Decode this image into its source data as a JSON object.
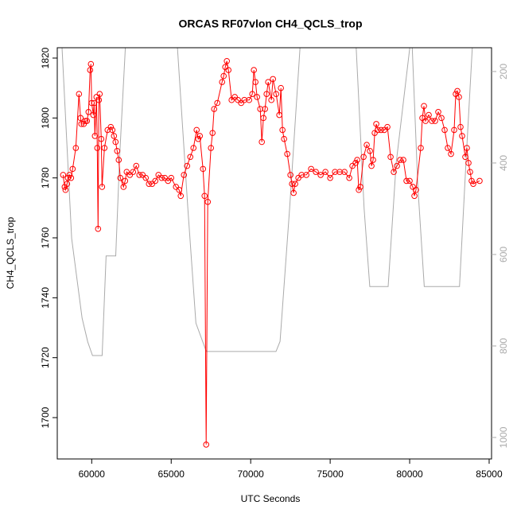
{
  "chart_data": {
    "type": "line",
    "title": "ORCAS RF07vlon CH4_QCLS_trop",
    "xlabel": "UTC Seconds",
    "ylabel": "CH4_QCLS_trop",
    "xlim": [
      57833,
      85151
    ],
    "ylim": [
      1686.2,
      1823.45
    ],
    "y2lim": [
      1047,
      148
    ],
    "xticks": [
      60000,
      65000,
      70000,
      75000,
      80000,
      85000
    ],
    "yticks": [
      1700,
      1720,
      1740,
      1760,
      1780,
      1800,
      1820
    ],
    "y2ticks": [
      200,
      400,
      600,
      800,
      1000
    ],
    "series": [
      {
        "color": "#aaaaaa",
        "axis": "y2",
        "x": [
          58135,
          58740,
          59395,
          59748,
          60050,
          60655,
          60907,
          61512,
          61764,
          62117,
          null,
          65393,
          66048,
          66552,
          67208,
          71593,
          71845,
          72450,
          73105,
          null,
          76633,
          77137,
          77490,
          78649,
          79153,
          80010,
          null,
          80161,
          80514,
          80917,
          83135,
          83538,
          83942
        ],
        "values": [
          148,
          565,
          739,
          791,
          821,
          821,
          603,
          603,
          380,
          148,
          null,
          148,
          500,
          750,
          812,
          812,
          790,
          500,
          148,
          null,
          148,
          500,
          670,
          670,
          400,
          148,
          null,
          148,
          450,
          670,
          670,
          400,
          148
        ]
      },
      {
        "color": "#ff0000",
        "markers": true,
        "x": [
          58200,
          58300,
          58350,
          58450,
          58500,
          58600,
          58700,
          58800,
          59000,
          59200,
          59300,
          59350,
          59500,
          59600,
          59700,
          59800,
          59900,
          59950,
          60000,
          60100,
          60150,
          60200,
          60300,
          60350,
          60400,
          60450,
          60500,
          60600,
          60650,
          60800,
          61000,
          61200,
          61300,
          61400,
          61500,
          61600,
          61700,
          61800,
          62000,
          62100,
          62200,
          62400,
          62600,
          62800,
          63000,
          63200,
          63400,
          63600,
          63800,
          64000,
          64200,
          64400,
          64600,
          64800,
          65000,
          65300,
          65500,
          65600,
          65800,
          66000,
          66200,
          66400,
          66600,
          66700,
          66800,
          67000,
          67100,
          67200,
          67300,
          67500,
          67600,
          67700,
          67900,
          68200,
          68300,
          68400,
          68500,
          68600,
          68800,
          69000,
          69200,
          69400,
          69600,
          69900,
          70100,
          70200,
          70300,
          70400,
          70600,
          70700,
          70800,
          70900,
          71000,
          71100,
          71300,
          71400,
          71600,
          71800,
          71900,
          72000,
          72100,
          72300,
          72500,
          72600,
          72700,
          72800,
          73000,
          73200,
          73500,
          73800,
          74100,
          74400,
          74700,
          75000,
          75300,
          75600,
          75900,
          76200,
          76400,
          76600,
          76700,
          76800,
          76900,
          77100,
          77300,
          77500,
          77600,
          77700,
          77800,
          77900,
          78000,
          78200,
          78400,
          78600,
          78800,
          79000,
          79200,
          79400,
          79600,
          79800,
          80000,
          80200,
          80300,
          80400,
          80700,
          80800,
          80900,
          81000,
          81200,
          81400,
          81600,
          81800,
          82000,
          82200,
          82400,
          82600,
          82800,
          82900,
          83000,
          83100,
          83200,
          83300,
          83500,
          83600,
          83700,
          83800,
          83900,
          84000,
          84400
        ],
        "values": [
          1781,
          1777,
          1776,
          1778,
          1780,
          1781,
          1780,
          1783,
          1790,
          1808,
          1800,
          1798,
          1798,
          1799,
          1799,
          1802,
          1816,
          1818,
          1805,
          1801,
          1805,
          1794,
          1807,
          1790,
          1763,
          1806,
          1808,
          1793,
          1777,
          1790,
          1796,
          1797,
          1796,
          1794,
          1792,
          1789,
          1786,
          1780,
          1777,
          1779,
          1782,
          1781,
          1782,
          1784,
          1781,
          1781,
          1780,
          1778,
          1778,
          1779,
          1781,
          1780,
          1780,
          1779,
          1780,
          1777,
          1776,
          1774,
          1781,
          1784,
          1787,
          1790,
          1796,
          1793,
          1794,
          1783,
          1774,
          1691,
          1772,
          1790,
          1795,
          1803,
          1805,
          1812,
          1814,
          1817,
          1819,
          1816,
          1806,
          1807,
          1806,
          1805,
          1806,
          1806,
          1808,
          1816,
          1812,
          1807,
          1803,
          1792,
          1800,
          1803,
          1808,
          1812,
          1806,
          1813,
          1808,
          1801,
          1810,
          1796,
          1793,
          1788,
          1781,
          1778,
          1775,
          1778,
          1780,
          1781,
          1781,
          1783,
          1782,
          1781,
          1782,
          1780,
          1782,
          1782,
          1782,
          1780,
          1784,
          1785,
          1786,
          1776,
          1777,
          1787,
          1791,
          1789,
          1784,
          1786,
          1795,
          1798,
          1796,
          1796,
          1796,
          1797,
          1787,
          1782,
          1784,
          1786,
          1786,
          1779,
          1779,
          1777,
          1774,
          1776,
          1790,
          1800,
          1804,
          1799,
          1801,
          1799,
          1799,
          1802,
          1800,
          1796,
          1790,
          1788,
          1796,
          1808,
          1809,
          1807,
          1797,
          1794,
          1787,
          1790,
          1785,
          1782,
          1779,
          1778,
          1779
        ]
      }
    ]
  }
}
